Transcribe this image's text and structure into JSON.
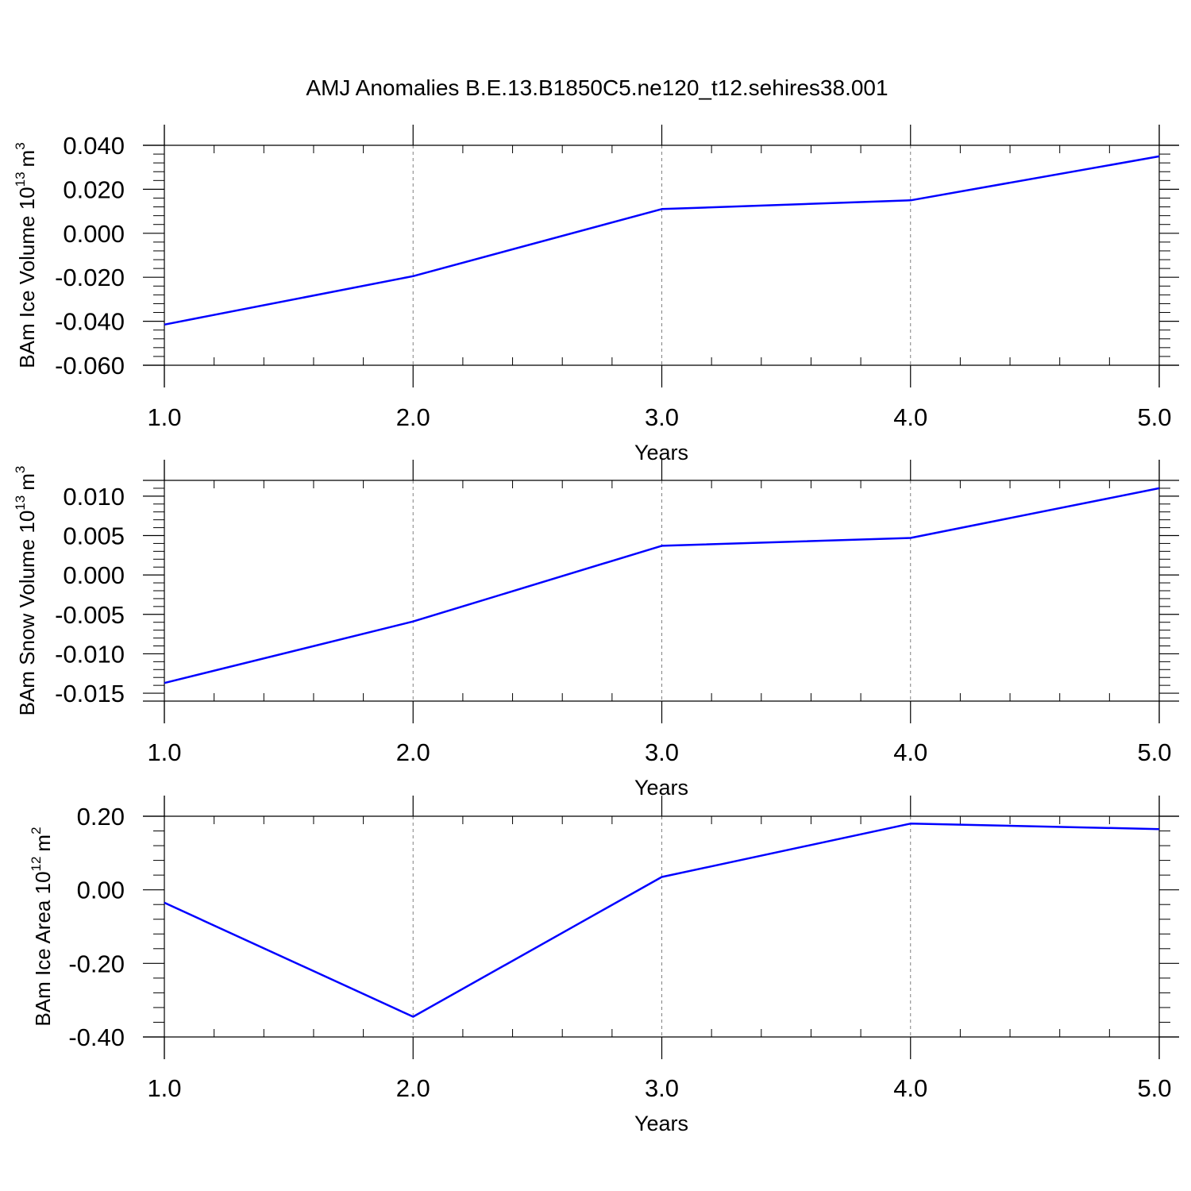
{
  "title": "AMJ Anomalies B.E.13.B1850C5.ne120_t12.sehires38.001",
  "style": {
    "line_color": "#0000ff",
    "axis_color": "#000000",
    "grid_color": "#808080"
  },
  "chart_data": [
    {
      "type": "line",
      "x": [
        1.0,
        2.0,
        3.0,
        4.0,
        5.0
      ],
      "values": [
        -0.0415,
        -0.0195,
        0.011,
        0.015,
        0.035
      ],
      "xlim": [
        1.0,
        5.0
      ],
      "ylim": [
        -0.06,
        0.04
      ],
      "xticks": [
        1,
        2,
        3,
        4,
        5
      ],
      "xtick_labels": [
        "1.0",
        "2.0",
        "3.0",
        "4.0",
        "5.0"
      ],
      "yticks": [
        -0.06,
        -0.04,
        -0.02,
        0.0,
        0.02,
        0.04
      ],
      "ytick_labels": [
        "-0.060",
        "-0.040",
        "-0.020",
        "0.000",
        "0.020",
        "0.040"
      ],
      "xlabel": "Years",
      "ylabel": "BAm Ice Volume 10",
      "ylabel_exp": "13",
      "ylabel_unit": "m",
      "ylabel_unit_exp": "3"
    },
    {
      "type": "line",
      "x": [
        1.0,
        2.0,
        3.0,
        4.0,
        5.0
      ],
      "values": [
        -0.0137,
        -0.0059,
        0.0037,
        0.0047,
        0.011
      ],
      "xlim": [
        1.0,
        5.0
      ],
      "ylim": [
        -0.016,
        0.012
      ],
      "xticks": [
        1,
        2,
        3,
        4,
        5
      ],
      "xtick_labels": [
        "1.0",
        "2.0",
        "3.0",
        "4.0",
        "5.0"
      ],
      "yticks": [
        -0.015,
        -0.01,
        -0.005,
        0.0,
        0.005,
        0.01
      ],
      "ytick_labels": [
        "-0.015",
        "-0.010",
        "-0.005",
        "0.000",
        "0.005",
        "0.010"
      ],
      "xlabel": "Years",
      "ylabel": "BAm Snow Volume 10",
      "ylabel_exp": "13",
      "ylabel_unit": "m",
      "ylabel_unit_exp": "3"
    },
    {
      "type": "line",
      "x": [
        1.0,
        2.0,
        3.0,
        4.0,
        5.0
      ],
      "values": [
        -0.035,
        -0.345,
        0.035,
        0.18,
        0.165
      ],
      "xlim": [
        1.0,
        5.0
      ],
      "ylim": [
        -0.4,
        0.2
      ],
      "xticks": [
        1,
        2,
        3,
        4,
        5
      ],
      "xtick_labels": [
        "1.0",
        "2.0",
        "3.0",
        "4.0",
        "5.0"
      ],
      "yticks": [
        -0.4,
        -0.2,
        0.0,
        0.2
      ],
      "ytick_labels": [
        "-0.40",
        "-0.20",
        "0.00",
        "0.20"
      ],
      "xlabel": "Years",
      "ylabel": "BAm Ice Area 10",
      "ylabel_exp": "12",
      "ylabel_unit": "m",
      "ylabel_unit_exp": "2"
    }
  ]
}
